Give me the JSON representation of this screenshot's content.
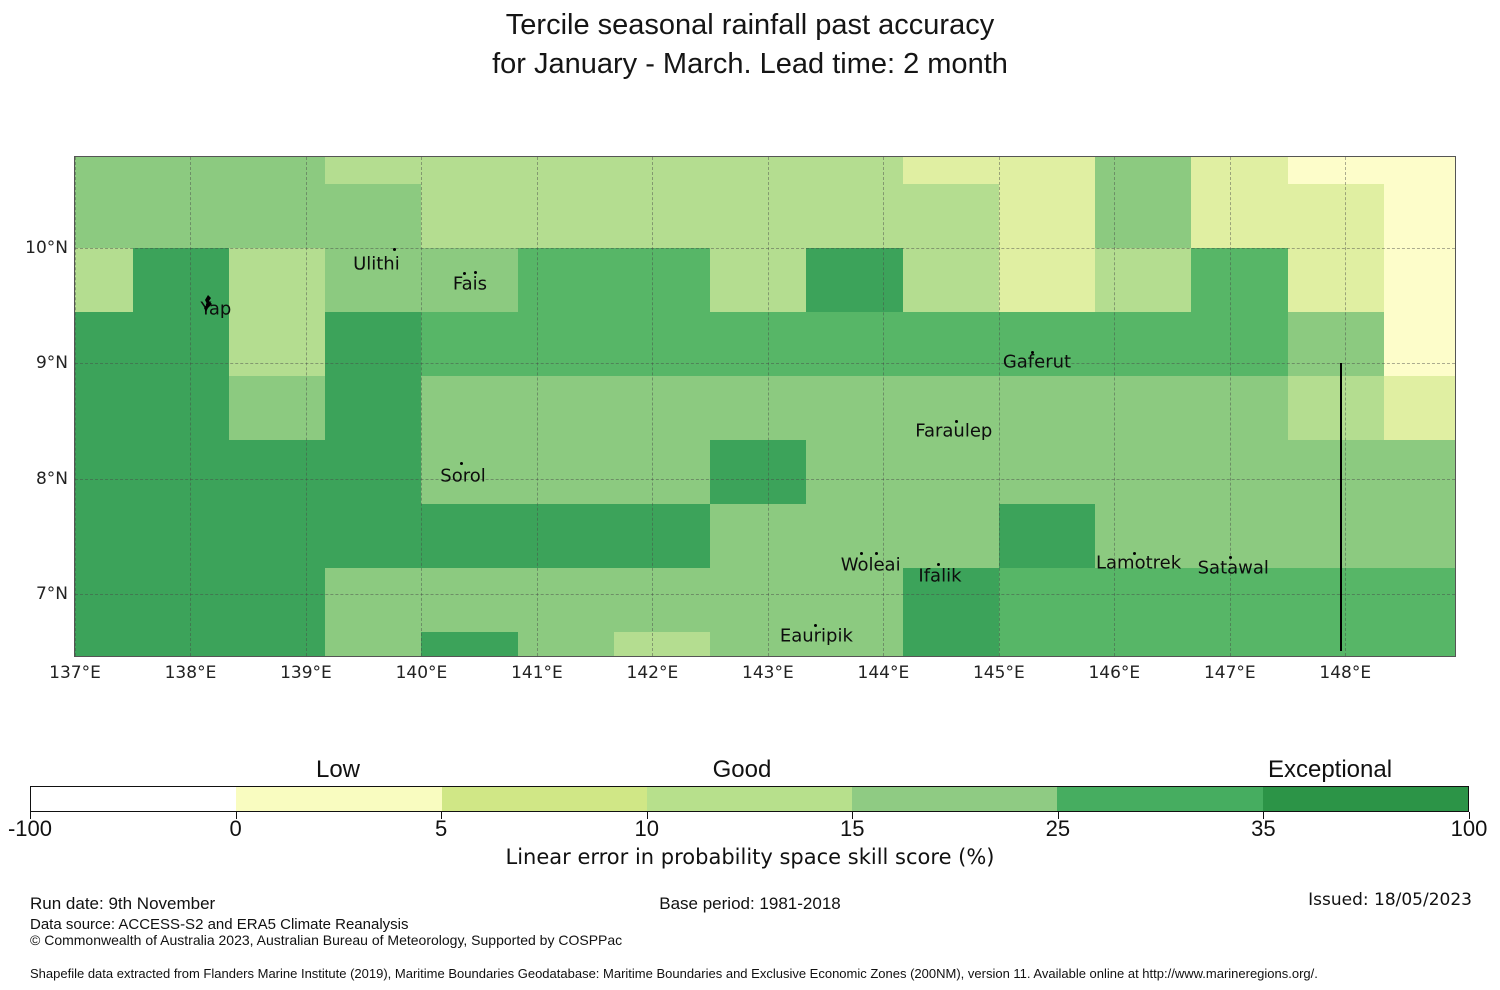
{
  "title": {
    "line1": "Tercile seasonal rainfall past accuracy",
    "line2": "for January - March. Lead time: 2 month"
  },
  "chart_data": {
    "type": "heatmap",
    "title": "Tercile seasonal rainfall past accuracy for January - March. Lead time: 2 month",
    "xlabel": "",
    "ylabel": "",
    "lon_range": [
      137.0,
      148.95
    ],
    "lat_range": [
      6.46,
      10.79
    ],
    "lon_edges": [
      137.0,
      137.5,
      138.333,
      139.167,
      140.0,
      140.833,
      141.667,
      142.5,
      143.333,
      144.167,
      145.0,
      145.833,
      146.667,
      147.5,
      148.333,
      148.95
    ],
    "lat_edges": [
      10.79,
      10.556,
      10.0,
      9.444,
      8.889,
      8.333,
      7.778,
      7.222,
      6.667,
      6.46
    ],
    "class_ranges": [
      "-100-0",
      "0-5",
      "5-10",
      "10-15",
      "15-25",
      "25-35",
      "35-100"
    ],
    "grid_note": "values are skill classes per class_ranges index; row 0 = northernmost band",
    "grid": [
      [
        4,
        4,
        4,
        3,
        3,
        3,
        3,
        3,
        3,
        2,
        2,
        4,
        2,
        1,
        1
      ],
      [
        4,
        4,
        4,
        4,
        3,
        3,
        3,
        3,
        3,
        3,
        2,
        4,
        2,
        2,
        1
      ],
      [
        3,
        6,
        3,
        4,
        4,
        5,
        5,
        3,
        6,
        3,
        2,
        3,
        5,
        2,
        1
      ],
      [
        6,
        6,
        3,
        6,
        5,
        5,
        5,
        5,
        5,
        5,
        5,
        5,
        5,
        4,
        1
      ],
      [
        6,
        6,
        4,
        6,
        4,
        4,
        4,
        4,
        4,
        4,
        4,
        4,
        4,
        3,
        2
      ],
      [
        6,
        6,
        6,
        6,
        4,
        4,
        4,
        6,
        4,
        4,
        4,
        4,
        4,
        4,
        4
      ],
      [
        6,
        6,
        6,
        6,
        6,
        6,
        6,
        4,
        4,
        4,
        6,
        4,
        4,
        4,
        4
      ],
      [
        6,
        6,
        6,
        4,
        4,
        4,
        4,
        4,
        4,
        6,
        5,
        5,
        5,
        5,
        5
      ],
      [
        6,
        6,
        6,
        4,
        6,
        4,
        3,
        4,
        4,
        6,
        5,
        5,
        5,
        5,
        5
      ]
    ],
    "x_ticks": [
      {
        "lon": 137,
        "label": "137°E"
      },
      {
        "lon": 138,
        "label": "138°E"
      },
      {
        "lon": 139,
        "label": "139°E"
      },
      {
        "lon": 140,
        "label": "140°E"
      },
      {
        "lon": 141,
        "label": "141°E"
      },
      {
        "lon": 142,
        "label": "142°E"
      },
      {
        "lon": 143,
        "label": "143°E"
      },
      {
        "lon": 144,
        "label": "144°E"
      },
      {
        "lon": 145,
        "label": "145°E"
      },
      {
        "lon": 146,
        "label": "146°E"
      },
      {
        "lon": 147,
        "label": "147°E"
      },
      {
        "lon": 148,
        "label": "148°E"
      }
    ],
    "y_ticks": [
      {
        "lat": 7,
        "label": "7°N"
      },
      {
        "lat": 8,
        "label": "8°N"
      },
      {
        "lat": 9,
        "label": "9°N"
      },
      {
        "lat": 10,
        "label": "10°N"
      }
    ],
    "islands": [
      {
        "name": "Yap",
        "lon": 138.22,
        "lat": 9.47,
        "dots": [
          [
            -10,
            -6
          ]
        ]
      },
      {
        "name": "Ulithi",
        "lon": 139.61,
        "lat": 9.86,
        "dots": [
          [
            17,
            -16
          ]
        ]
      },
      {
        "name": "Fais",
        "lon": 140.42,
        "lat": 9.69,
        "dots": [
          [
            -7,
            -12
          ],
          [
            4,
            -13
          ]
        ]
      },
      {
        "name": "Gaferut",
        "lon": 145.33,
        "lat": 9.01,
        "dots": [
          [
            -6,
            -11
          ]
        ]
      },
      {
        "name": "Faraulep",
        "lon": 144.61,
        "lat": 8.41,
        "dots": [
          [
            1,
            -11
          ]
        ]
      },
      {
        "name": "Sorol",
        "lon": 140.36,
        "lat": 8.02,
        "dots": [
          [
            -3,
            -14
          ]
        ]
      },
      {
        "name": "Woleai",
        "lon": 143.89,
        "lat": 7.25,
        "dots": [
          [
            -11,
            -13
          ],
          [
            4,
            -13
          ]
        ]
      },
      {
        "name": "Ifalik",
        "lon": 144.49,
        "lat": 7.15,
        "dots": [
          [
            -3,
            -13
          ]
        ]
      },
      {
        "name": "Lamotrek",
        "lon": 146.21,
        "lat": 7.27,
        "dots": [
          [
            -6,
            -11
          ]
        ]
      },
      {
        "name": "Satawal",
        "lon": 147.03,
        "lat": 7.22,
        "dots": [
          [
            -4,
            -12
          ]
        ]
      },
      {
        "name": "Eauripik",
        "lon": 143.42,
        "lat": 6.63,
        "dots": [
          [
            -2,
            -12
          ]
        ]
      }
    ],
    "eez_line": {
      "lon": 147.95,
      "lat_from": 9.0,
      "lat_to": 6.5
    }
  },
  "palette": {
    "1": "#fdfdca",
    "2": "#e0efa2",
    "3": "#b4dd90",
    "4": "#8cca80",
    "5": "#57b667",
    "6": "#3ca35a"
  },
  "colorbar": {
    "segments": [
      "#ffffff",
      "#f9fcc0",
      "#d0e786",
      "#b7e08c",
      "#8fcb83",
      "#46ad60",
      "#2c9447"
    ],
    "ticks": [
      "-100",
      "0",
      "5",
      "10",
      "15",
      "25",
      "35",
      "100"
    ],
    "labels": [
      {
        "text": "Low"
      },
      {
        "text": "Good"
      },
      {
        "text": "Exceptional"
      }
    ],
    "axis_label": "Linear error in probability space skill score (%)"
  },
  "footer": {
    "run_date": "Run date: 9th November",
    "base_period": "Base period: 1981-2018",
    "issued": "Issued: 18/05/2023",
    "data_source": "Data source: ACCESS-S2 and ERA5 Climate Reanalysis",
    "copyright": "© Commonwealth of Australia 2023, Australian Bureau of Meteorology, Supported by COSPPac",
    "shapefile": "Shapefile data extracted from Flanders Marine Institute (2019), Maritime Boundaries Geodatabase: Maritime Boundaries and Exclusive Economic Zones (200NM), version 11. Available online at http://www.marineregions.org/."
  }
}
